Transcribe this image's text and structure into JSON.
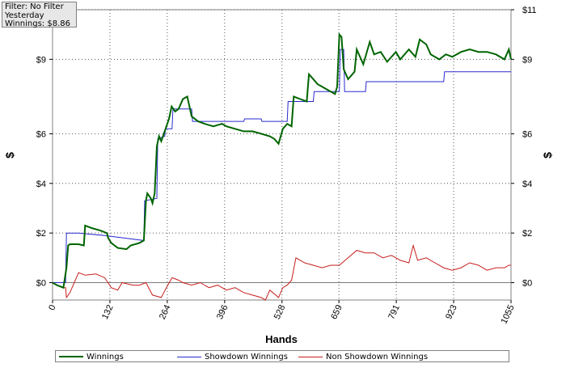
{
  "filter_panel": {
    "line1": "Filter: No Filter",
    "line2": "Yesterday",
    "line3": "Winnings: $8.86"
  },
  "colors": {
    "winnings": "#006400",
    "showdown": "#2a2acf",
    "non_showdown": "#c81e1e",
    "zero_line": "#7a7a7a",
    "grid": "#555555"
  },
  "chart_data": {
    "type": "line",
    "xlabel": "Hands",
    "ylabel_left": "$",
    "ylabel_right": "$",
    "xlim": [
      0,
      1055
    ],
    "ylim": [
      -0.7,
      11
    ],
    "x_ticks": [
      0,
      132,
      264,
      396,
      528,
      659,
      791,
      923,
      1055
    ],
    "y_ticks": [
      0,
      2,
      4,
      6,
      9,
      11
    ],
    "y_tick_labels": [
      "$0",
      "$2",
      "$4",
      "$6",
      "$9",
      "$11"
    ],
    "grid": true,
    "legend_position": "bottom",
    "series": [
      {
        "name": "Winnings",
        "x": [
          0,
          10,
          25,
          32,
          36,
          40,
          50,
          60,
          72,
          75,
          90,
          110,
          125,
          128,
          135,
          150,
          170,
          180,
          200,
          210,
          215,
          218,
          222,
          226,
          230,
          235,
          240,
          245,
          250,
          256,
          262,
          268,
          274,
          282,
          290,
          300,
          310,
          320,
          335,
          350,
          370,
          390,
          400,
          420,
          440,
          460,
          480,
          500,
          510,
          520,
          530,
          540,
          550,
          555,
          570,
          585,
          590,
          600,
          610,
          620,
          630,
          640,
          650,
          655,
          660,
          665,
          670,
          680,
          695,
          700,
          715,
          730,
          740,
          755,
          770,
          790,
          800,
          820,
          835,
          845,
          860,
          870,
          890,
          905,
          920,
          940,
          960,
          980,
          1000,
          1020,
          1040,
          1050,
          1055
        ],
        "y": [
          0,
          -0.1,
          -0.2,
          0.6,
          1.5,
          1.55,
          1.55,
          1.55,
          1.5,
          2.3,
          2.2,
          2.1,
          2.0,
          1.8,
          1.6,
          1.4,
          1.35,
          1.5,
          1.6,
          1.7,
          3.3,
          3.6,
          3.5,
          3.4,
          3.2,
          3.6,
          5.5,
          5.9,
          5.7,
          6.0,
          6.3,
          6.6,
          7.1,
          6.9,
          7.0,
          7.4,
          7.5,
          6.7,
          6.5,
          6.4,
          6.3,
          6.4,
          6.3,
          6.2,
          6.1,
          6.1,
          6.0,
          5.9,
          5.8,
          5.6,
          6.2,
          6.4,
          6.3,
          7.5,
          7.4,
          7.3,
          8.4,
          8.2,
          8.0,
          7.9,
          7.8,
          7.7,
          7.6,
          7.9,
          10.0,
          9.9,
          8.6,
          8.2,
          8.5,
          9.4,
          8.8,
          9.7,
          9.2,
          9.3,
          8.9,
          9.3,
          9.0,
          9.4,
          9.1,
          9.8,
          9.6,
          9.2,
          9.0,
          9.2,
          9.1,
          9.3,
          9.4,
          9.3,
          9.3,
          9.2,
          9.0,
          9.4,
          9.0
        ]
      },
      {
        "name": "Showdown Winnings",
        "x": [
          0,
          30,
          32,
          60,
          120,
          210,
          212,
          240,
          242,
          258,
          260,
          275,
          277,
          300,
          305,
          320,
          322,
          440,
          442,
          480,
          482,
          540,
          542,
          600,
          602,
          660,
          662,
          670,
          672,
          720,
          722,
          900,
          902,
          1055
        ],
        "y": [
          0,
          0,
          2.0,
          2.0,
          1.9,
          1.7,
          3.3,
          3.4,
          5.8,
          5.9,
          6.2,
          6.2,
          7.0,
          7.0,
          7.0,
          7.0,
          6.5,
          6.5,
          6.6,
          6.6,
          6.5,
          6.5,
          7.3,
          7.3,
          7.7,
          7.7,
          9.4,
          9.4,
          7.7,
          7.7,
          8.1,
          8.1,
          8.5,
          8.5
        ]
      },
      {
        "name": "Non Showdown Winnings",
        "x": [
          0,
          10,
          25,
          30,
          32,
          40,
          60,
          75,
          100,
          120,
          135,
          150,
          160,
          185,
          200,
          215,
          230,
          250,
          262,
          275,
          290,
          300,
          320,
          340,
          360,
          380,
          400,
          420,
          440,
          460,
          480,
          490,
          500,
          520,
          530,
          540,
          550,
          560,
          580,
          600,
          620,
          640,
          660,
          680,
          700,
          720,
          740,
          760,
          780,
          800,
          820,
          830,
          840,
          860,
          880,
          900,
          920,
          940,
          960,
          980,
          1000,
          1020,
          1040,
          1050,
          1055
        ],
        "y": [
          0,
          -0.1,
          -0.2,
          -0.2,
          -0.6,
          -0.4,
          0.4,
          0.3,
          0.35,
          0.2,
          -0.2,
          -0.3,
          0.0,
          -0.1,
          -0.1,
          0.0,
          -0.5,
          -0.6,
          -0.2,
          0.2,
          0.1,
          0.0,
          -0.1,
          0.0,
          -0.2,
          -0.1,
          -0.3,
          -0.2,
          -0.4,
          -0.5,
          -0.6,
          -0.7,
          -0.3,
          -0.6,
          -0.2,
          -0.1,
          0.1,
          1.0,
          0.8,
          0.7,
          0.6,
          0.7,
          0.7,
          1.0,
          1.3,
          1.2,
          1.2,
          1.0,
          1.1,
          0.9,
          0.8,
          1.5,
          0.9,
          1.0,
          0.8,
          0.6,
          0.5,
          0.6,
          0.8,
          0.7,
          0.5,
          0.6,
          0.6,
          0.7,
          0.7
        ]
      }
    ]
  }
}
